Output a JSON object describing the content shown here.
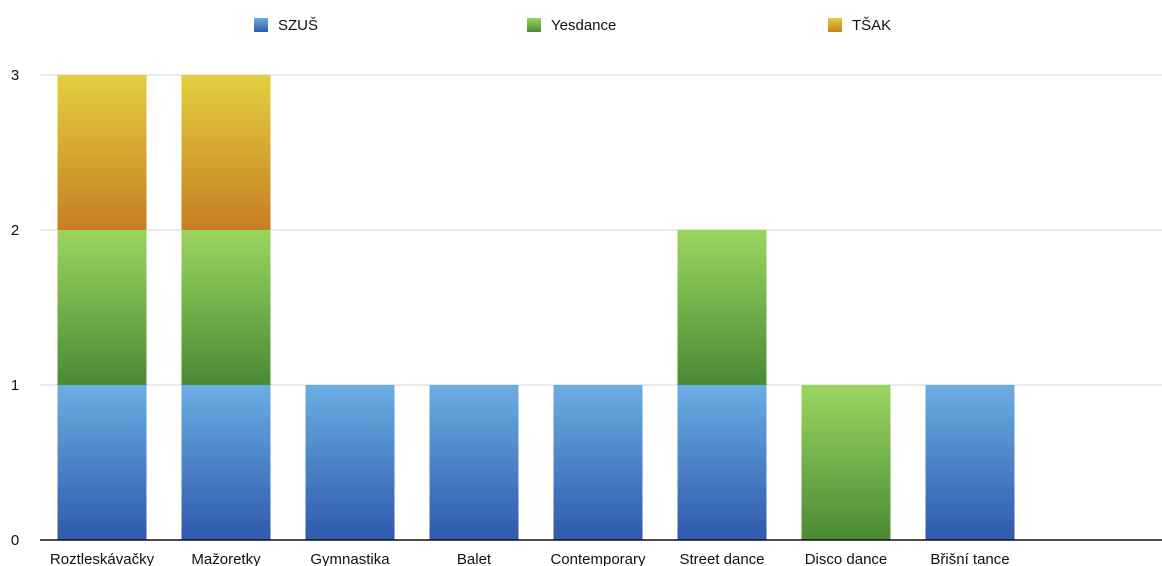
{
  "chart_data": {
    "type": "bar",
    "stacked": true,
    "categories": [
      "Roztleskávačky",
      "Mažoretky",
      "Gymnastika",
      "Balet",
      "Contemporary",
      "Street dance",
      "Disco dance",
      "Břišní tance"
    ],
    "series": [
      {
        "name": "SZUŠ",
        "values": [
          1,
          1,
          1,
          1,
          1,
          1,
          0,
          1
        ],
        "color_top": "#6aaee3",
        "color_bottom": "#2f59ad"
      },
      {
        "name": "Yesdance",
        "values": [
          1,
          1,
          0,
          0,
          0,
          1,
          1,
          0
        ],
        "color_top": "#9ad65f",
        "color_bottom": "#4a8a35"
      },
      {
        "name": "TŠAK",
        "values": [
          1,
          1,
          0,
          0,
          0,
          0,
          0,
          0
        ],
        "color_top": "#e3cf3e",
        "color_bottom": "#c77d22"
      }
    ],
    "ylim": [
      0,
      3
    ],
    "yticks": [
      "0",
      "1",
      "2",
      "3"
    ],
    "grid": true,
    "legend_position": "top"
  }
}
